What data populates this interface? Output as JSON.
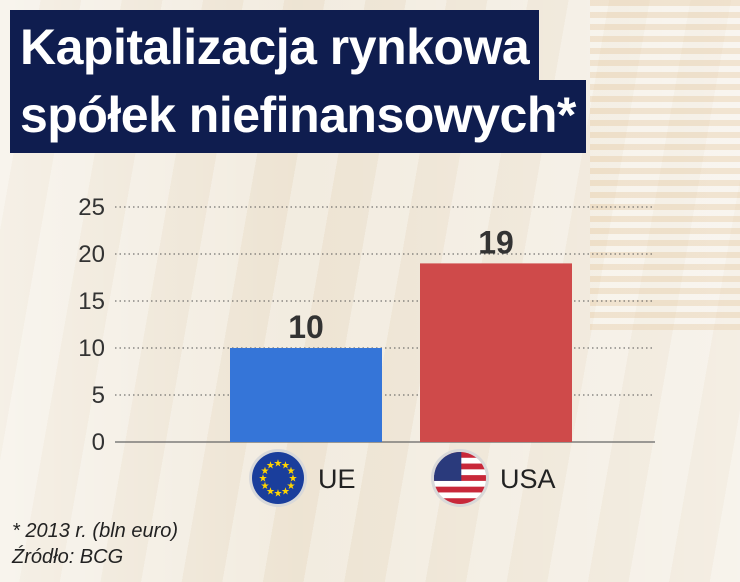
{
  "title": {
    "line1": "Kapitalizacja rynkowa",
    "line2": "spółek niefinansowych*"
  },
  "footnote": "* 2013 r. (bln euro)",
  "source": "Źródło: BCG",
  "colors": {
    "title_bg": "#0f1d4f",
    "eu_bar": "#3575d8",
    "usa_bar": "#cf4a4a"
  },
  "icons": [
    "eu-flag-icon",
    "usa-flag-icon"
  ],
  "chart_data": {
    "type": "bar",
    "categories": [
      "UE",
      "USA"
    ],
    "values": [
      10,
      19
    ],
    "value_labels": [
      "10",
      "19"
    ],
    "ylim": [
      0,
      25
    ],
    "yticks": [
      "0",
      "5",
      "10",
      "15",
      "20",
      "25"
    ],
    "grid": true
  }
}
